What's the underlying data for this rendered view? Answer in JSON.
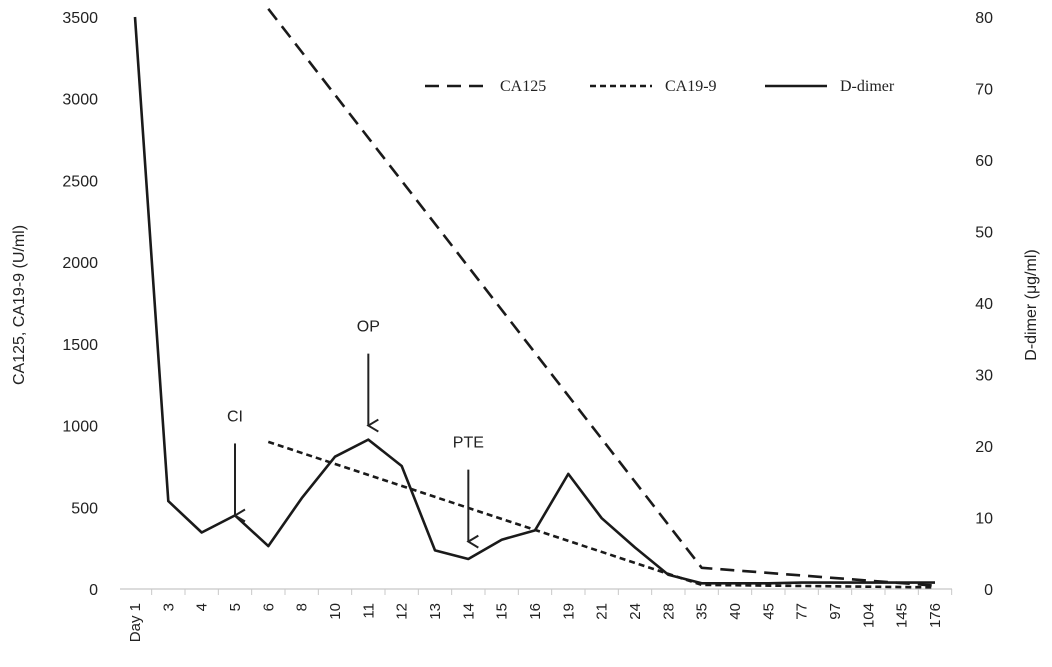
{
  "chart_data": {
    "type": "line",
    "title": "",
    "categories": [
      "Day 1",
      "3",
      "4",
      "5",
      "6",
      "8",
      "10",
      "11",
      "12",
      "13",
      "14",
      "15",
      "16",
      "19",
      "21",
      "24",
      "28",
      "35",
      "40",
      "45",
      "77",
      "97",
      "104",
      "145",
      "176"
    ],
    "y_left": {
      "label": "CA125, CA19-9 (U/ml)",
      "range": [
        0,
        3500
      ],
      "ticks": [
        0,
        500,
        1000,
        1500,
        2000,
        2500,
        3000,
        3500
      ]
    },
    "y_right": {
      "label": "D-dimer (μg/ml)",
      "range": [
        0,
        80
      ],
      "ticks": [
        0,
        10,
        20,
        30,
        40,
        50,
        60,
        70,
        80
      ]
    },
    "grid": false,
    "legend_position": "top-right",
    "series": [
      {
        "name": "CA125",
        "axis": "left",
        "style": "dashed",
        "values": [
          null,
          null,
          null,
          null,
          3550,
          null,
          null,
          null,
          null,
          null,
          null,
          null,
          null,
          null,
          null,
          null,
          null,
          130,
          null,
          null,
          null,
          null,
          null,
          null,
          20
        ]
      },
      {
        "name": "CA19-9",
        "axis": "left",
        "style": "dotted",
        "values": [
          null,
          null,
          null,
          null,
          900,
          null,
          null,
          null,
          null,
          null,
          null,
          null,
          null,
          null,
          null,
          null,
          null,
          25,
          null,
          null,
          null,
          null,
          null,
          null,
          10
        ]
      },
      {
        "name": "D-dimer",
        "axis": "right",
        "style": "solid",
        "values": [
          80,
          12.3,
          7.9,
          10.3,
          6,
          12.7,
          18.5,
          20.9,
          17.2,
          5.4,
          4.2,
          6.9,
          8.2,
          16.1,
          9.9,
          5.8,
          2,
          0.8,
          0.8,
          0.8,
          0.9,
          0.9,
          0.9,
          0.9,
          0.9
        ]
      }
    ],
    "annotations": [
      {
        "text": "CI",
        "category": "5",
        "y_left": 450
      },
      {
        "text": "OP",
        "category": "11",
        "y_left": 1000
      },
      {
        "text": "PTE",
        "category": "14",
        "y_left": 290
      }
    ]
  }
}
